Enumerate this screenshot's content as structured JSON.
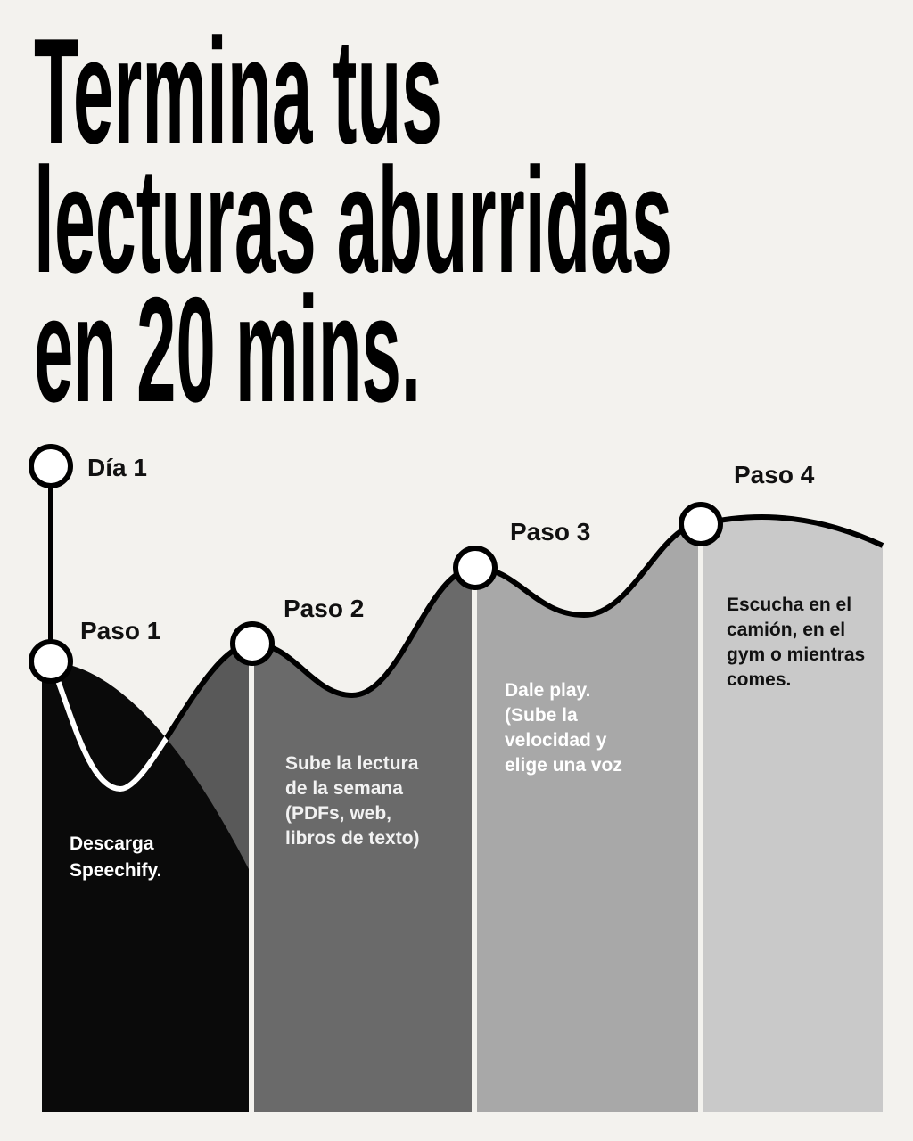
{
  "title": {
    "lines": [
      "Termina tus",
      "lecturas aburridas",
      "en 20 mins."
    ]
  },
  "start": {
    "label": "Día 1"
  },
  "steps": [
    {
      "label": "Paso 1",
      "description": [
        "Descarga",
        "Speechify."
      ]
    },
    {
      "label": "Paso 2",
      "description": [
        "Sube la lectura",
        "de la semana",
        "(PDFs, web,",
        "libros de texto)"
      ]
    },
    {
      "label": "Paso 3",
      "description": [
        "Dale play.",
        "(Sube la",
        "velocidad y",
        "elige una voz"
      ]
    },
    {
      "label": "Paso 4",
      "description": [
        "Escucha en el",
        "camión, en el",
        "gym o mientras",
        "comes."
      ]
    }
  ]
}
